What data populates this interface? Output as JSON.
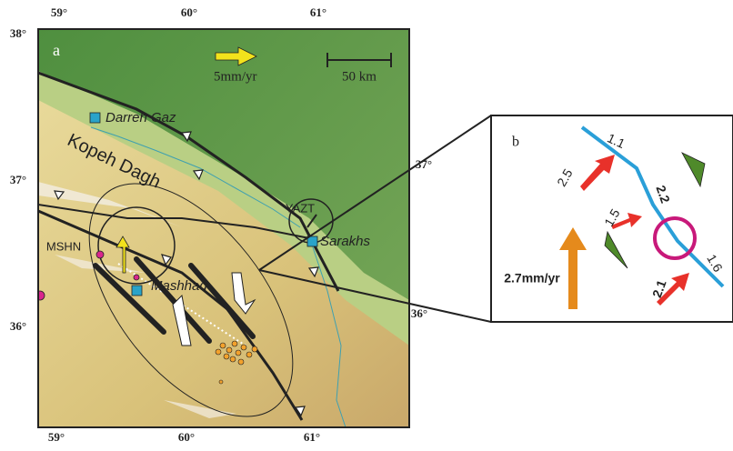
{
  "panel_a": {
    "label": "a",
    "lon_labels_top": [
      "59°",
      "60°",
      "61°"
    ],
    "lon_labels_bottom": [
      "59°",
      "60°",
      "61°"
    ],
    "lat_labels_left": [
      "38°",
      "37°",
      "36°"
    ],
    "lat_labels_right": [
      "37°",
      "36°"
    ],
    "velocity_scale": "5mm/yr",
    "distance_scale": "50 km",
    "places": [
      "Darreh Gaz",
      "Sarakhs",
      "Mashhad"
    ],
    "range_name": "Kopeh Dagh",
    "stations": [
      "YAZT",
      "MSHN"
    ]
  },
  "panel_b": {
    "label": "b",
    "rates": [
      "1.1",
      "2.5",
      "2.2",
      "1.5",
      "1.6",
      "2.1"
    ],
    "velocity": "2.7mm/yr"
  }
}
